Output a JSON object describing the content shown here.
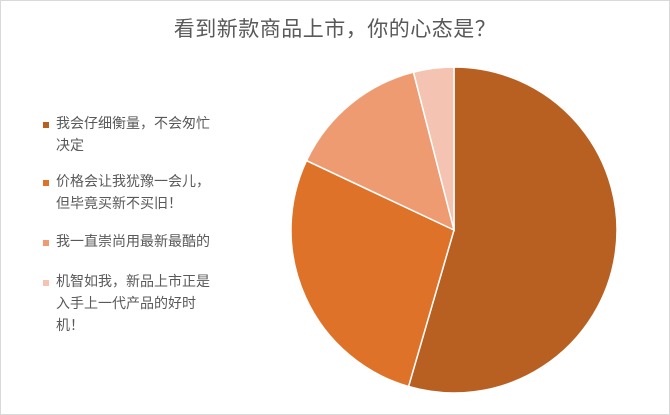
{
  "chart_data": {
    "type": "pie",
    "title": "看到新款商品上市，你的心态是？",
    "legend_position": "left",
    "categories": [
      "我会仔细衡量，不会匆忙决定",
      "价格会让我犹豫一会儿，但毕竟买新不买旧！",
      "我一直崇尚用最新最酷的",
      "机智如我，新品上市正是入手上一代产品的好时机！"
    ],
    "values": [
      54.5,
      27.5,
      14,
      4
    ],
    "colors": [
      "#b85f22",
      "#de7228",
      "#ef9b72",
      "#f5c3b1"
    ]
  }
}
